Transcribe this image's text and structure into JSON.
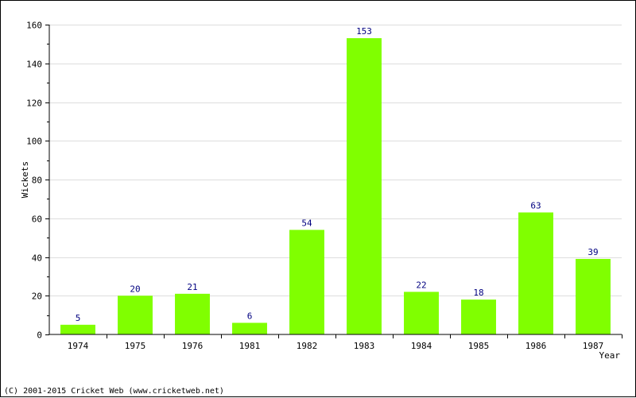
{
  "chart_data": {
    "type": "bar",
    "categories": [
      "1974",
      "1975",
      "1976",
      "1981",
      "1982",
      "1983",
      "1984",
      "1985",
      "1986",
      "1987"
    ],
    "values": [
      5,
      20,
      21,
      6,
      54,
      153,
      22,
      18,
      63,
      39
    ],
    "ylabel": "Wickets",
    "xlabel": "Year",
    "ylim": [
      0,
      160
    ],
    "yticks": [
      0,
      20,
      40,
      60,
      80,
      100,
      120,
      140,
      160
    ],
    "grid": true,
    "data_labels": true,
    "bar_color": "#80ff00",
    "label_color": "#000080"
  },
  "footer": {
    "copyright": "(C) 2001-2015 Cricket Web (www.cricketweb.net)"
  }
}
